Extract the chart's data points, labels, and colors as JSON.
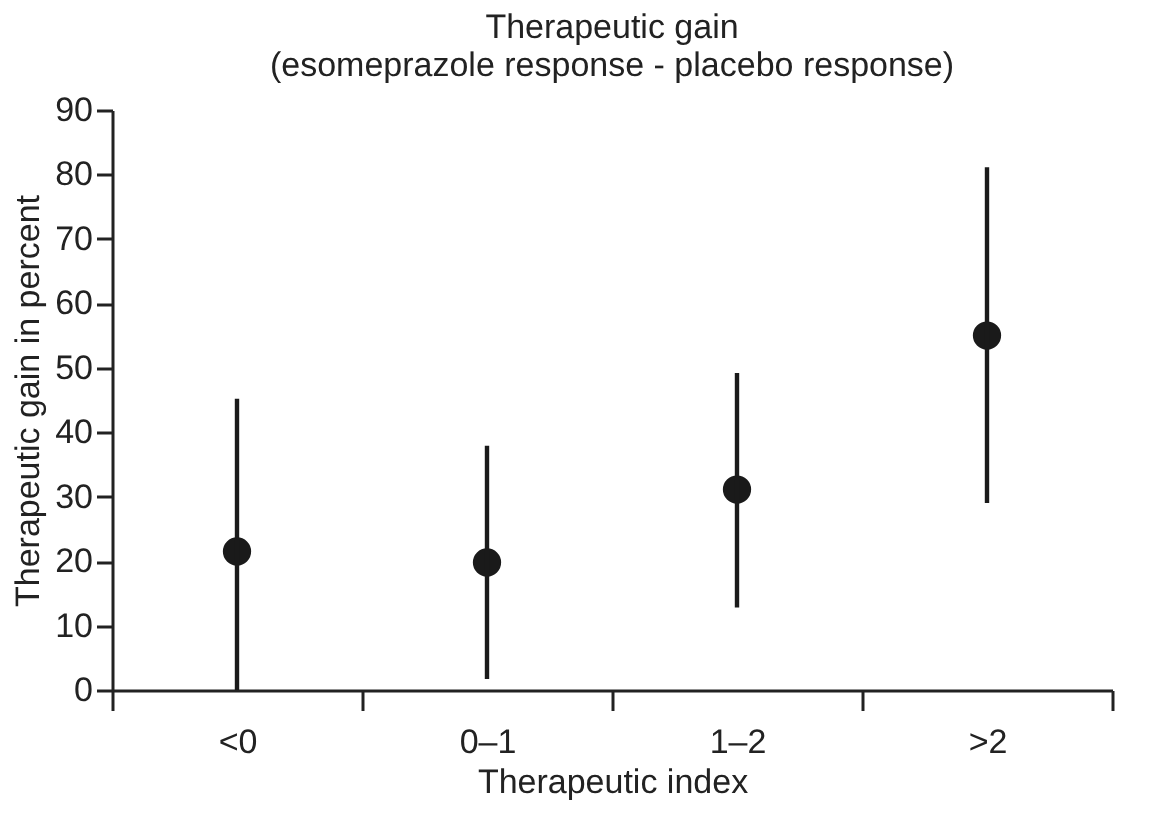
{
  "chart_data": {
    "type": "scatter",
    "title": [
      "Therapeutic gain",
      "(esomeprazole response - placebo response)"
    ],
    "xlabel": "Therapeutic index",
    "ylabel": "Therapeutic gain in percent",
    "categories": [
      "<0",
      "0–1",
      "1–2",
      ">2"
    ],
    "values": [
      21.5,
      19.8,
      31.1,
      55.0
    ],
    "errors": [
      [
        0,
        45.2
      ],
      [
        1.7,
        37.9
      ],
      [
        12.8,
        49.2
      ],
      [
        29.0,
        81.1
      ]
    ],
    "color": "#1a1a1a",
    "marker": "circle",
    "ylim": [
      0,
      90
    ],
    "yticks": [
      0,
      10,
      20,
      30,
      40,
      50,
      60,
      70,
      80,
      90
    ],
    "grid": false
  }
}
